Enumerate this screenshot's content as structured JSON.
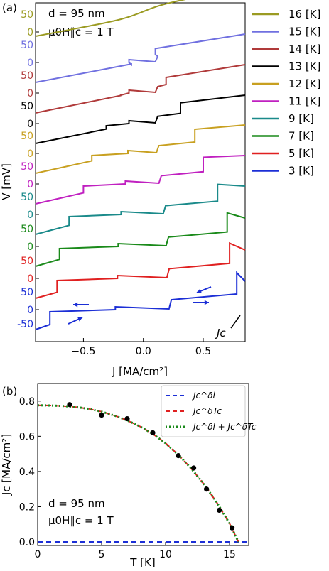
{
  "panels": {
    "a": "(a)",
    "b": "(b)"
  },
  "chart_data": [
    {
      "type": "line",
      "panel": "(a)",
      "xlabel": "J [MA/cm²]",
      "ylabel": "V [mV]",
      "xlim": [
        -0.9,
        0.85
      ],
      "xticks": [
        "−0.5",
        "0.0",
        "0.5"
      ],
      "annotation_params": [
        "d = 95 nm",
        "μ0H∥c = 1 T"
      ],
      "jc_label": "Jc",
      "legend_position": "right",
      "series": [
        {
          "name": "16 [K]",
          "color": "#9b9b22",
          "yticks": [
            "50",
            "0"
          ],
          "jc": 0.0,
          "jump": 0
        },
        {
          "name": "15 [K]",
          "color": "#7070e0",
          "yticks": [
            "50",
            "0"
          ],
          "jc": 0.1,
          "jump": 6
        },
        {
          "name": "14 [K]",
          "color": "#b03a3a",
          "yticks": [
            "50",
            "0"
          ],
          "jc": 0.19,
          "jump": 10
        },
        {
          "name": "13 [K]",
          "color": "#000000",
          "yticks": [
            "50",
            "0"
          ],
          "jc": 0.31,
          "jump": 22
        },
        {
          "name": "12 [K]",
          "color": "#c8a020",
          "yticks": [
            "50",
            "0"
          ],
          "jc": 0.43,
          "jump": 30
        },
        {
          "name": "11 [K]",
          "color": "#c020c0",
          "yticks": [
            "50",
            "0"
          ],
          "jc": 0.5,
          "jump": 36
        },
        {
          "name": "9 [K]",
          "color": "#1a8a8a",
          "yticks": [
            "50",
            "0"
          ],
          "jc": 0.62,
          "jump": 44
        },
        {
          "name": "7 [K]",
          "color": "#1a8a1a",
          "yticks": [
            "50",
            "0"
          ],
          "jc": 0.7,
          "jump": 52
        },
        {
          "name": "5 [K]",
          "color": "#e02020",
          "yticks": [
            "50",
            "0"
          ],
          "jc": 0.72,
          "jump": 56
        },
        {
          "name": "3 [K]",
          "color": "#1c2fd6",
          "yticks": [
            "50",
            "0",
            "-50"
          ],
          "jc": 0.78,
          "jump": 60
        }
      ]
    },
    {
      "type": "scatter",
      "panel": "(b)",
      "xlabel": "T [K]",
      "ylabel": "Jc [MA/cm²]",
      "xlim": [
        0,
        16.5
      ],
      "ylim": [
        -0.02,
        0.9
      ],
      "xticks": [
        0,
        5,
        10,
        15
      ],
      "yticks": [
        0.0,
        0.2,
        0.4,
        0.6,
        0.8
      ],
      "annotation_params": [
        "d = 95 nm",
        "μ0H∥c = 1 T"
      ],
      "legend_position": "top-right",
      "points": {
        "T": [
          2.5,
          5,
          7,
          9,
          11,
          12.2,
          13.2,
          14.2,
          15.2
        ],
        "Jc": [
          0.78,
          0.72,
          0.7,
          0.62,
          0.49,
          0.42,
          0.3,
          0.18,
          0.08
        ]
      },
      "fit": {
        "T": [
          0,
          1,
          2,
          3,
          4,
          5,
          6,
          7,
          8,
          9,
          10,
          11,
          12,
          13,
          14,
          15,
          15.7
        ],
        "Jc": [
          0.776,
          0.775,
          0.772,
          0.766,
          0.756,
          0.74,
          0.718,
          0.69,
          0.656,
          0.614,
          0.561,
          0.495,
          0.418,
          0.328,
          0.225,
          0.105,
          0.0
        ]
      },
      "series": [
        {
          "name": "Jc^δl",
          "color": "#1c2fd6",
          "style": "dashed"
        },
        {
          "name": "Jc^δTc",
          "color": "#e02020",
          "style": "dashed"
        },
        {
          "name": "Jc^δl + Jc^δTc",
          "color": "#1a8a1a",
          "style": "dotted"
        }
      ]
    }
  ]
}
